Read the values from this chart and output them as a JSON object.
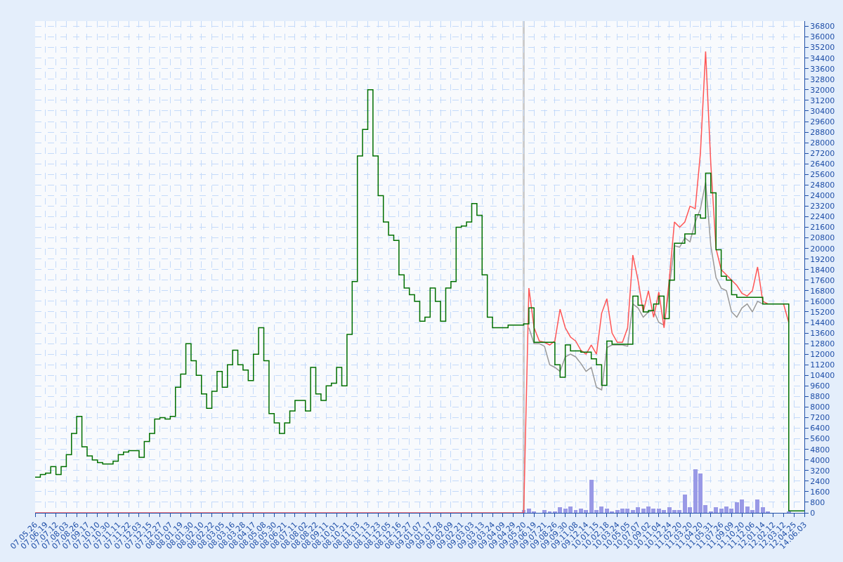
{
  "chart_data": {
    "type": "step",
    "categories": [
      "07.05.26",
      null,
      "07.06.19",
      null,
      "07.07.12",
      null,
      "07.08.03",
      null,
      "07.08.26",
      null,
      "07.09.17",
      null,
      "07.10.10",
      null,
      "07.10.30",
      null,
      "07.11.11",
      null,
      "07.11.22",
      null,
      "07.12.03",
      null,
      "07.12.15",
      null,
      "07.12.27",
      null,
      "08.01.07",
      null,
      "08.01.19",
      null,
      "08.01.30",
      null,
      "08.02.10",
      null,
      "08.02.22",
      null,
      "08.03.05",
      null,
      "08.03.16",
      null,
      "08.03.28",
      null,
      "08.04.17",
      null,
      "08.05.08",
      null,
      "08.05.30",
      null,
      "08.06.21",
      null,
      "08.07.11",
      null,
      "08.08.02",
      null,
      "08.08.22",
      null,
      "08.09.11",
      null,
      "08.10.01",
      null,
      "08.10.21",
      null,
      "08.11.03",
      null,
      "08.11.13",
      null,
      "08.11.23",
      null,
      "08.12.05",
      null,
      "08.12.16",
      null,
      "08.12.27",
      null,
      "09.01.07",
      null,
      "09.01.17",
      null,
      "09.01.28",
      null,
      "09.02.09",
      null,
      "09.02.21",
      null,
      "09.03.03",
      null,
      "09.03.13",
      null,
      "09.03.24",
      null,
      "09.04.09",
      null,
      "09.04.29",
      null,
      "09.05.20",
      null,
      "09.06.19",
      null,
      "09.07.21",
      null,
      "09.08.26",
      null,
      "09.09.30",
      null,
      "09.11.08",
      null,
      "09.12.14",
      null,
      "10.01.15",
      null,
      "10.02.18",
      null,
      "10.03.24",
      null,
      "10.05.05",
      null,
      "10.07.07",
      null,
      "10.09.02",
      null,
      "10.11.04",
      null,
      "10.12.24",
      null,
      "11.02.20",
      null,
      "11.03.20",
      null,
      "11.04.20",
      null,
      "11.05.31",
      null,
      "11.07.26",
      null,
      "11.09.09",
      null,
      "11.10.20",
      null,
      "11.12.06",
      null,
      "12.01.14",
      null,
      "12.02.12",
      null,
      "12.03.12",
      null,
      "12.04.25",
      null,
      "14.06.03"
    ],
    "series": [
      {
        "type": "bar",
        "color": "#9999e6",
        "values": [
          null,
          null,
          null,
          null,
          null,
          null,
          null,
          null,
          null,
          null,
          null,
          null,
          null,
          null,
          null,
          null,
          null,
          null,
          null,
          null,
          null,
          null,
          null,
          null,
          null,
          null,
          null,
          null,
          null,
          null,
          null,
          null,
          null,
          null,
          null,
          null,
          null,
          null,
          null,
          null,
          null,
          null,
          null,
          null,
          null,
          null,
          null,
          null,
          null,
          null,
          null,
          null,
          null,
          null,
          null,
          null,
          null,
          null,
          null,
          null,
          null,
          null,
          null,
          null,
          null,
          null,
          null,
          null,
          null,
          null,
          null,
          null,
          null,
          null,
          null,
          null,
          null,
          null,
          null,
          null,
          null,
          null,
          null,
          null,
          null,
          null,
          null,
          null,
          null,
          null,
          null,
          null,
          null,
          null,
          200,
          300,
          100,
          0,
          200,
          100,
          100,
          400,
          300,
          500,
          200,
          300,
          200,
          2500,
          200,
          500,
          300,
          100,
          200,
          300,
          300,
          200,
          400,
          300,
          500,
          300,
          300,
          200,
          400,
          200,
          200,
          1400,
          400,
          3300,
          3000,
          600,
          100,
          400,
          300,
          500,
          300,
          800,
          1000,
          500,
          200,
          1000,
          400,
          100,
          0,
          0,
          0,
          100,
          0,
          0,
          0
        ]
      },
      {
        "type": "line",
        "color": "#999999",
        "values": [
          null,
          null,
          null,
          null,
          null,
          null,
          null,
          null,
          null,
          null,
          null,
          null,
          null,
          null,
          null,
          null,
          null,
          null,
          null,
          null,
          null,
          null,
          null,
          null,
          null,
          null,
          null,
          null,
          null,
          null,
          null,
          null,
          null,
          null,
          null,
          null,
          null,
          null,
          null,
          null,
          null,
          null,
          null,
          null,
          null,
          null,
          null,
          null,
          null,
          null,
          null,
          null,
          null,
          null,
          null,
          null,
          null,
          null,
          null,
          null,
          null,
          null,
          null,
          null,
          null,
          null,
          null,
          null,
          null,
          null,
          null,
          null,
          null,
          null,
          null,
          null,
          null,
          null,
          null,
          null,
          null,
          null,
          null,
          null,
          null,
          null,
          null,
          null,
          null,
          null,
          null,
          null,
          null,
          null,
          null,
          14000,
          12800,
          12800,
          12600,
          11200,
          11000,
          10700,
          11800,
          12000,
          11800,
          11300,
          10700,
          11000,
          9500,
          9300,
          12500,
          12700,
          12700,
          12700,
          12600,
          15800,
          15500,
          14800,
          15200,
          15300,
          14400,
          14200,
          17000,
          20200,
          20100,
          20800,
          20500,
          22000,
          23000,
          25000,
          20200,
          17800,
          17000,
          16800,
          15200,
          14800,
          15500,
          15800,
          15200,
          16000,
          15800,
          null,
          null,
          null,
          null,
          null,
          null,
          null,
          null
        ]
      },
      {
        "type": "line",
        "color": "#ff5555",
        "values": [
          0,
          0,
          0,
          0,
          0,
          0,
          0,
          0,
          0,
          0,
          0,
          0,
          0,
          0,
          0,
          0,
          0,
          0,
          0,
          0,
          0,
          0,
          0,
          0,
          0,
          0,
          0,
          0,
          0,
          0,
          0,
          0,
          0,
          0,
          0,
          0,
          0,
          0,
          0,
          0,
          0,
          0,
          0,
          0,
          0,
          0,
          0,
          0,
          0,
          0,
          0,
          0,
          0,
          0,
          0,
          0,
          0,
          0,
          0,
          0,
          0,
          0,
          0,
          0,
          0,
          0,
          0,
          0,
          0,
          0,
          0,
          0,
          0,
          0,
          0,
          0,
          0,
          0,
          0,
          0,
          0,
          0,
          0,
          0,
          0,
          0,
          0,
          0,
          0,
          0,
          0,
          0,
          0,
          0,
          0,
          17000,
          14000,
          13000,
          12900,
          12700,
          13000,
          15400,
          14000,
          13300,
          13000,
          12300,
          12000,
          12700,
          12000,
          15100,
          16200,
          13600,
          12900,
          12900,
          14000,
          19500,
          17600,
          15200,
          16800,
          14800,
          16700,
          14000,
          17600,
          22000,
          21600,
          22000,
          23200,
          23000,
          27200,
          34900,
          26400,
          20000,
          18400,
          18000,
          17600,
          17200,
          16600,
          16400,
          16800,
          18600,
          16000,
          15800,
          null,
          null,
          15800,
          14400,
          null,
          null,
          null
        ]
      },
      {
        "color": "#007000",
        "values": [
          2700,
          2900,
          3000,
          3500,
          2900,
          3500,
          4400,
          6000,
          7300,
          5000,
          4300,
          4000,
          3800,
          3700,
          3700,
          3900,
          4400,
          4600,
          4700,
          4700,
          4200,
          5400,
          6000,
          7100,
          7200,
          7100,
          7300,
          9500,
          10500,
          12800,
          11500,
          10400,
          9000,
          7900,
          9200,
          10700,
          9500,
          11200,
          12300,
          11200,
          10800,
          10000,
          12000,
          14000,
          11500,
          7500,
          6800,
          6000,
          6800,
          7700,
          8500,
          8500,
          7700,
          11000,
          9000,
          8500,
          9600,
          9800,
          11000,
          9600,
          13500,
          17500,
          27000,
          29000,
          32000,
          27000,
          24000,
          22000,
          21000,
          20600,
          18000,
          17000,
          16500,
          16000,
          14500,
          14800,
          17000,
          16000,
          14500,
          17000,
          17500,
          21600,
          21700,
          22000,
          23400,
          22500,
          18000,
          14800,
          14000,
          14000,
          14000,
          14200,
          14200,
          14200,
          14300,
          15500,
          12900,
          12900,
          12900,
          12900,
          11200,
          10250,
          12700,
          12250,
          12250,
          12150,
          12150,
          11650,
          11200,
          9650,
          13000,
          12750,
          12750,
          12750,
          12750,
          16400,
          15700,
          15200,
          15300,
          15800,
          16400,
          14700,
          17600,
          20400,
          20400,
          21100,
          21100,
          22550,
          22300,
          25700,
          24200,
          19900,
          17900,
          17600,
          16500,
          16300,
          16300,
          16300,
          16300,
          16300,
          15800,
          15800,
          15800,
          15800,
          15800,
          150,
          150,
          150,
          150
        ]
      }
    ],
    "ylim": [
      0,
      37200
    ],
    "yticks": [
      0,
      800,
      1600,
      2400,
      3200,
      4000,
      4800,
      5600,
      6400,
      7200,
      8000,
      8800,
      9600,
      10400,
      11200,
      12000,
      12800,
      13600,
      14400,
      15200,
      16000,
      16800,
      17600,
      18400,
      19200,
      20000,
      20800,
      21600,
      22400,
      23200,
      24000,
      24800,
      25600,
      26400,
      27200,
      28000,
      28800,
      29600,
      30400,
      31200,
      32000,
      32800,
      33600,
      34400,
      35200,
      36000,
      36800
    ],
    "ref_lines": [
      {
        "axis": "x",
        "value": "09.05.20",
        "color": "#cccccc"
      }
    ],
    "grid": true,
    "line_style": "solid"
  }
}
